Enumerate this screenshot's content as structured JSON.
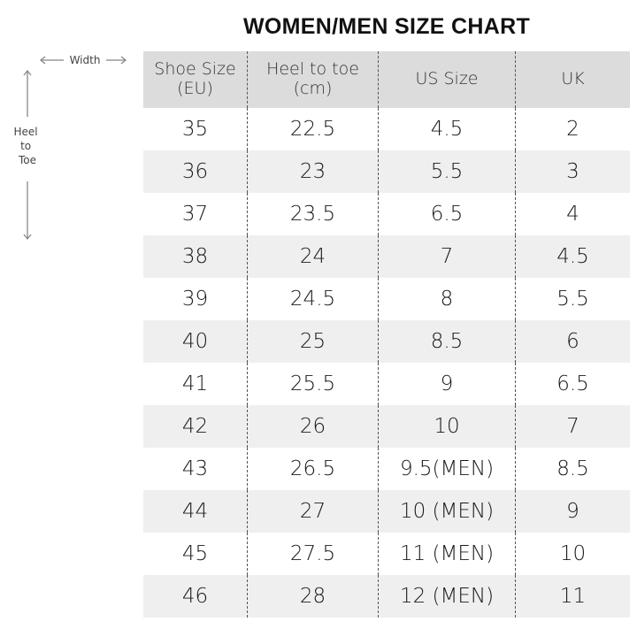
{
  "chart_data": {
    "type": "table",
    "title": "WOMEN/MEN SIZE CHART",
    "columns": [
      "Shoe Size (EU)",
      "Heel to toe (cm)",
      "US Size",
      "UK"
    ],
    "header_lines": [
      [
        "Shoe Size",
        "(EU)"
      ],
      [
        "Heel to toe",
        "(cm)"
      ],
      [
        "US Size"
      ],
      [
        "UK"
      ]
    ],
    "rows": [
      [
        "35",
        "22.5",
        "4.5",
        "2"
      ],
      [
        "36",
        "23",
        "5.5",
        "3"
      ],
      [
        "37",
        "23.5",
        "6.5",
        "4"
      ],
      [
        "38",
        "24",
        "7",
        "4.5"
      ],
      [
        "39",
        "24.5",
        "8",
        "5.5"
      ],
      [
        "40",
        "25",
        "8.5",
        "6"
      ],
      [
        "41",
        "25.5",
        "9",
        "6.5"
      ],
      [
        "42",
        "26",
        "10",
        "7"
      ],
      [
        "43",
        "26.5",
        "9.5(MEN)",
        "8.5"
      ],
      [
        "44",
        "27",
        "10 (MEN)",
        "9"
      ],
      [
        "45",
        "27.5",
        "11 (MEN)",
        "10"
      ],
      [
        "46",
        "28",
        "12 (MEN)",
        "11"
      ]
    ]
  },
  "diagram": {
    "width_label": "Width",
    "length_label_lines": [
      "Heel",
      "to",
      "Toe"
    ],
    "icon": "foot-outline-icon"
  },
  "colors": {
    "header_bg": "#dcdcdc",
    "alt_row_bg": "#efefef",
    "foot_fill": "#fbfbef"
  }
}
